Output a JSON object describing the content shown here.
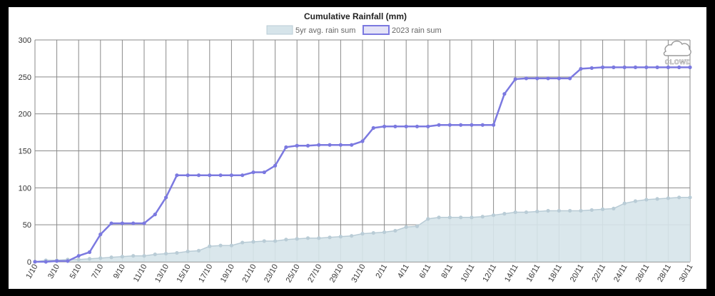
{
  "chart_data": {
    "type": "line",
    "title": "Cumulative Rainfall (mm)",
    "xlabel": "",
    "ylabel": "",
    "ylim": [
      0,
      300
    ],
    "yticks": [
      0,
      50,
      100,
      150,
      200,
      250,
      300
    ],
    "grid": true,
    "legend_position": "top-center",
    "x": [
      "1/10",
      "2/10",
      "3/10",
      "4/10",
      "5/10",
      "6/10",
      "7/10",
      "8/10",
      "9/10",
      "10/10",
      "11/10",
      "12/10",
      "13/10",
      "14/10",
      "15/10",
      "16/10",
      "17/10",
      "18/10",
      "19/10",
      "20/10",
      "21/10",
      "22/10",
      "23/10",
      "24/10",
      "25/10",
      "26/10",
      "27/10",
      "28/10",
      "29/10",
      "30/10",
      "31/10",
      "1/11",
      "2/11",
      "3/11",
      "4/11",
      "5/11",
      "6/11",
      "7/11",
      "8/11",
      "9/11",
      "10/11",
      "11/11",
      "12/11",
      "13/11",
      "14/11",
      "15/11",
      "16/11",
      "17/11",
      "18/11",
      "19/11",
      "20/11",
      "21/11",
      "22/11",
      "23/11",
      "24/11",
      "25/11",
      "26/11",
      "27/11",
      "28/11",
      "29/11",
      "30/11"
    ],
    "xtick_labels": [
      "1/10",
      "3/10",
      "5/10",
      "7/10",
      "9/10",
      "11/10",
      "13/10",
      "15/10",
      "17/10",
      "19/10",
      "21/10",
      "23/10",
      "25/10",
      "27/10",
      "29/10",
      "31/10",
      "2/11",
      "4/11",
      "6/11",
      "8/11",
      "10/11",
      "12/11",
      "14/11",
      "16/11",
      "18/11",
      "20/11",
      "22/11",
      "24/11",
      "26/11",
      "28/11",
      "30/11"
    ],
    "series": [
      {
        "name": "5yr avg. rain sum",
        "style": "area",
        "color": "#b9ccd6",
        "fill": "#d6e4ea",
        "values": [
          0,
          2,
          2,
          3,
          3,
          4,
          5,
          6,
          7,
          8,
          8,
          10,
          11,
          12,
          14,
          15,
          21,
          22,
          22,
          26,
          27,
          28,
          28,
          30,
          31,
          32,
          32,
          33,
          34,
          35,
          38,
          39,
          40,
          42,
          47,
          48,
          58,
          60,
          60,
          60,
          60,
          61,
          63,
          65,
          67,
          67,
          68,
          69,
          69,
          69,
          69,
          70,
          71,
          72,
          79,
          82,
          84,
          85,
          86,
          87,
          87
        ]
      },
      {
        "name": "2023 rain sum",
        "style": "line",
        "color": "#7b79e0",
        "values": [
          0,
          0,
          1,
          1,
          8,
          13,
          37,
          52,
          52,
          52,
          52,
          64,
          87,
          117,
          117,
          117,
          117,
          117,
          117,
          117,
          121,
          121,
          130,
          155,
          157,
          157,
          158,
          158,
          158,
          158,
          163,
          181,
          183,
          183,
          183,
          183,
          183,
          185,
          185,
          185,
          185,
          185,
          185,
          227,
          247,
          248,
          248,
          248,
          248,
          248,
          261,
          262,
          263,
          263,
          263,
          263,
          263,
          263,
          263,
          263,
          263
        ]
      }
    ]
  },
  "logo": {
    "text": "CLOWD"
  }
}
